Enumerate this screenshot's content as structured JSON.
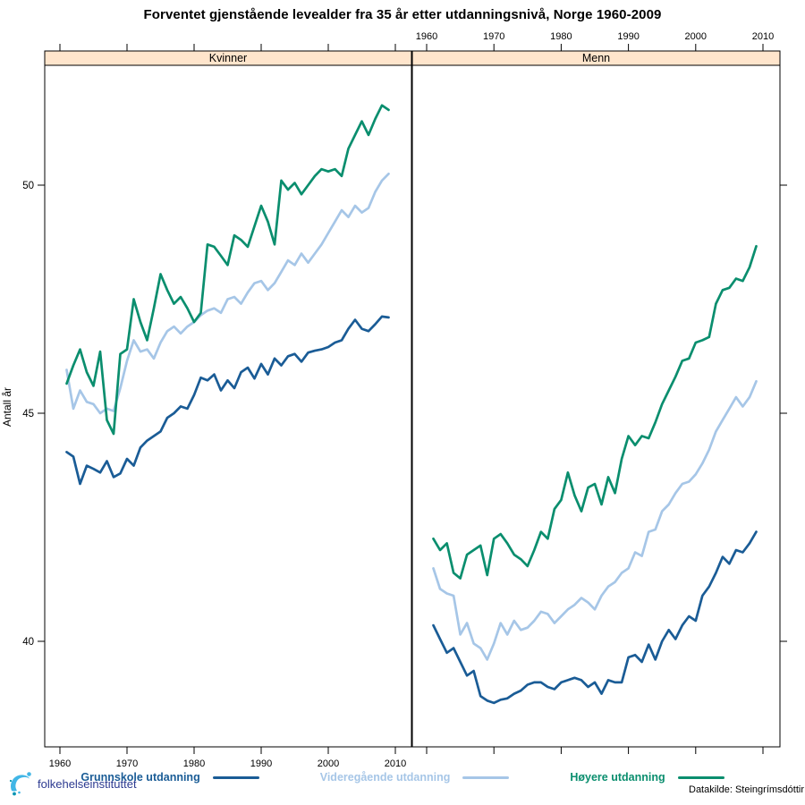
{
  "title": "Forventet gjenstående levealder fra 35 år etter utdanningsnivå, Norge 1960-2009",
  "y_axis": {
    "label": "Antall år",
    "ticks": [
      40,
      45,
      50
    ]
  },
  "x_axis": {
    "ticks": [
      1960,
      1970,
      1980,
      1990,
      2000,
      2010
    ]
  },
  "panels": [
    "Kvinner",
    "Menn"
  ],
  "legend": {
    "items": [
      {
        "label": "Grunnskole utdanning",
        "color": "#1A5C96"
      },
      {
        "label": "Videregående utdanning",
        "color": "#A6C6E7"
      },
      {
        "label": "Høyere utdanning",
        "color": "#0A8E6E"
      }
    ]
  },
  "footer": {
    "logo_text": "folkehelseinstituttet",
    "source": "Datakilde: Steingrímsdóttir"
  },
  "style_colors": {
    "strip_background": "#FFE5CC",
    "panel_border": "#000000"
  },
  "chart_data": {
    "type": "line",
    "ylabel": "Antall år",
    "xlabel": "",
    "ylim": [
      37.7,
      52.6
    ],
    "xlim": [
      1958,
      2012.5
    ],
    "grid": false,
    "legend_position": "bottom",
    "x": [
      1961,
      1962,
      1963,
      1964,
      1965,
      1966,
      1967,
      1968,
      1969,
      1970,
      1971,
      1972,
      1973,
      1974,
      1975,
      1976,
      1977,
      1978,
      1979,
      1980,
      1981,
      1982,
      1983,
      1984,
      1985,
      1986,
      1987,
      1988,
      1989,
      1990,
      1991,
      1992,
      1993,
      1994,
      1995,
      1996,
      1997,
      1998,
      1999,
      2000,
      2001,
      2002,
      2003,
      2004,
      2005,
      2006,
      2007,
      2008,
      2009
    ],
    "panels": [
      {
        "name": "Kvinner",
        "series": [
          {
            "name": "Grunnskole utdanning",
            "color": "#1A5C96",
            "values": [
              44.15,
              44.05,
              43.45,
              43.85,
              43.78,
              43.7,
              43.95,
              43.6,
              43.68,
              44.0,
              43.85,
              44.25,
              44.4,
              44.5,
              44.6,
              44.9,
              45.0,
              45.15,
              45.1,
              45.4,
              45.78,
              45.72,
              45.85,
              45.5,
              45.72,
              45.55,
              45.9,
              46.0,
              45.76,
              46.08,
              45.85,
              46.2,
              46.05,
              46.25,
              46.3,
              46.13,
              46.33,
              46.37,
              46.4,
              46.45,
              46.55,
              46.6,
              46.85,
              47.05,
              46.85,
              46.8,
              46.95,
              47.12,
              47.1
            ]
          },
          {
            "name": "Videregående utdanning",
            "color": "#A6C6E7",
            "values": [
              45.95,
              45.1,
              45.5,
              45.25,
              45.2,
              45.0,
              45.1,
              45.05,
              45.55,
              46.15,
              46.6,
              46.35,
              46.4,
              46.2,
              46.55,
              46.8,
              46.9,
              46.75,
              46.9,
              47.0,
              47.15,
              47.25,
              47.3,
              47.2,
              47.5,
              47.55,
              47.4,
              47.65,
              47.85,
              47.9,
              47.7,
              47.85,
              48.1,
              48.35,
              48.25,
              48.5,
              48.3,
              48.5,
              48.7,
              48.95,
              49.2,
              49.45,
              49.3,
              49.55,
              49.4,
              49.5,
              49.85,
              50.1,
              50.25
            ]
          },
          {
            "name": "Høyere utdanning",
            "color": "#0A8E6E",
            "values": [
              45.65,
              46.05,
              46.4,
              45.9,
              45.6,
              46.35,
              44.85,
              44.55,
              46.3,
              46.4,
              47.5,
              47.0,
              46.6,
              47.3,
              48.05,
              47.7,
              47.4,
              47.55,
              47.3,
              47.0,
              47.2,
              48.7,
              48.65,
              48.45,
              48.25,
              48.9,
              48.8,
              48.65,
              49.1,
              49.55,
              49.2,
              48.7,
              50.1,
              49.9,
              50.05,
              49.8,
              50.0,
              50.2,
              50.35,
              50.3,
              50.35,
              50.2,
              50.8,
              51.1,
              51.4,
              51.1,
              51.45,
              51.75,
              51.65
            ]
          }
        ]
      },
      {
        "name": "Menn",
        "series": [
          {
            "name": "Grunnskole utdanning",
            "color": "#1A5C96",
            "values": [
              40.35,
              40.05,
              39.75,
              39.85,
              39.55,
              39.25,
              39.35,
              38.8,
              38.7,
              38.65,
              38.72,
              38.75,
              38.85,
              38.92,
              39.05,
              39.1,
              39.1,
              39.0,
              38.95,
              39.1,
              39.15,
              39.2,
              39.15,
              39.0,
              39.1,
              38.85,
              39.15,
              39.1,
              39.1,
              39.65,
              39.7,
              39.55,
              39.93,
              39.6,
              40.0,
              40.25,
              40.05,
              40.35,
              40.55,
              40.45,
              41.0,
              41.2,
              41.5,
              41.85,
              41.7,
              42.0,
              41.95,
              42.15,
              42.4
            ]
          },
          {
            "name": "Videregående utdanning",
            "color": "#A6C6E7",
            "values": [
              41.6,
              41.15,
              41.05,
              41.0,
              40.15,
              40.4,
              39.95,
              39.85,
              39.6,
              39.95,
              40.4,
              40.15,
              40.45,
              40.25,
              40.3,
              40.45,
              40.65,
              40.6,
              40.4,
              40.55,
              40.7,
              40.8,
              40.95,
              40.85,
              40.7,
              41.0,
              41.2,
              41.3,
              41.5,
              41.6,
              41.95,
              41.87,
              42.4,
              42.45,
              42.85,
              43.0,
              43.25,
              43.45,
              43.5,
              43.66,
              43.9,
              44.2,
              44.6,
              44.85,
              45.1,
              45.35,
              45.15,
              45.35,
              45.7
            ]
          },
          {
            "name": "Høyere utdanning",
            "color": "#0A8E6E",
            "values": [
              42.25,
              42.0,
              42.15,
              41.5,
              41.38,
              41.9,
              42.0,
              42.1,
              41.45,
              42.25,
              42.35,
              42.15,
              41.9,
              41.8,
              41.65,
              42.0,
              42.4,
              42.25,
              42.9,
              43.1,
              43.7,
              43.2,
              42.85,
              43.37,
              43.45,
              43.0,
              43.6,
              43.25,
              44.0,
              44.5,
              44.3,
              44.5,
              44.45,
              44.8,
              45.2,
              45.5,
              45.8,
              46.15,
              46.2,
              46.55,
              46.6,
              46.67,
              47.4,
              47.7,
              47.75,
              47.95,
              47.9,
              48.2,
              48.66
            ]
          }
        ]
      }
    ]
  }
}
